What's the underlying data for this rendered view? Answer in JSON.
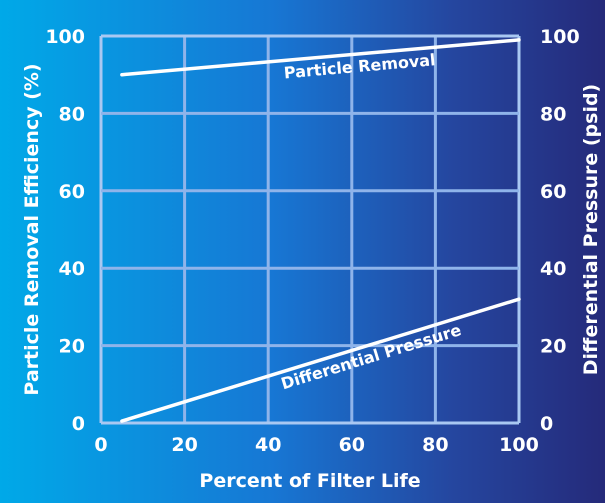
{
  "chart_data": {
    "type": "line",
    "title": "",
    "xlabel": "Percent of Filter Life",
    "ylabel_left": "Particle Removal Efficiency (%)",
    "ylabel_right": "Differential Pressure (psid)",
    "xlim": [
      0,
      100
    ],
    "ylim": [
      0,
      100
    ],
    "y2lim": [
      0,
      100
    ],
    "x_ticks": [
      "0",
      "20",
      "40",
      "60",
      "80",
      "100"
    ],
    "y_ticks": [
      "0",
      "20",
      "40",
      "60",
      "80",
      "100"
    ],
    "y2_ticks": [
      "0",
      "20",
      "40",
      "60",
      "80",
      "100"
    ],
    "grid": true,
    "series": [
      {
        "name": "Particle Removal",
        "axis": "left",
        "x": [
          5,
          100
        ],
        "y": [
          90,
          99
        ]
      },
      {
        "name": "Differential Pressure",
        "axis": "right",
        "x": [
          5,
          100
        ],
        "y": [
          0.5,
          32
        ]
      }
    ],
    "colors": {
      "line": "#ffffff",
      "grid": "#8fb4ea",
      "frame": "#a9c8f2",
      "text": "#ffffff"
    }
  }
}
